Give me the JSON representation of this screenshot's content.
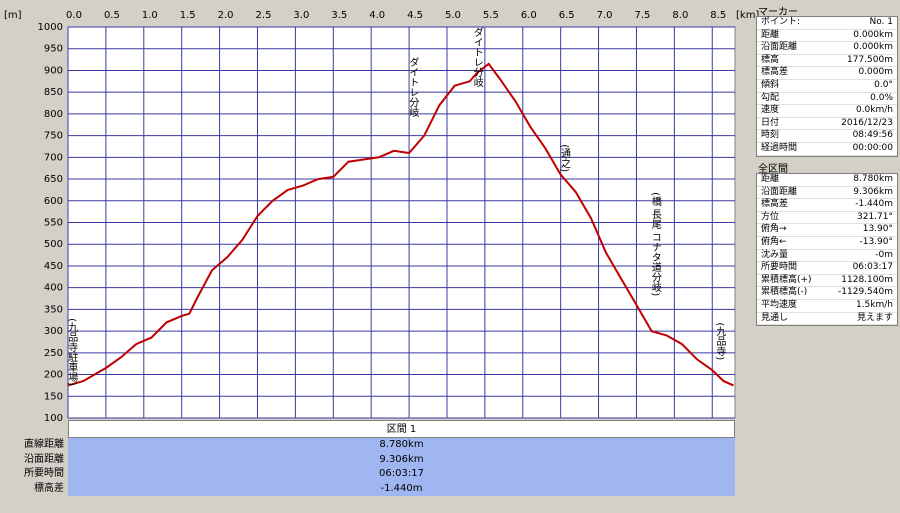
{
  "chart_data": {
    "type": "line",
    "x_unit": "[km]",
    "y_unit": "[m]",
    "x": [
      0,
      0.2,
      0.4,
      0.5,
      0.7,
      0.9,
      1.1,
      1.3,
      1.5,
      1.6,
      1.7,
      1.9,
      2.1,
      2.3,
      2.5,
      2.7,
      2.9,
      3.1,
      3.3,
      3.5,
      3.7,
      3.9,
      4.1,
      4.3,
      4.5,
      4.7,
      4.9,
      5.1,
      5.3,
      5.4,
      5.55,
      5.7,
      5.9,
      6.1,
      6.3,
      6.5,
      6.7,
      6.9,
      7.1,
      7.3,
      7.5,
      7.7,
      7.9,
      8.1,
      8.3,
      8.5,
      8.65,
      8.78
    ],
    "series": [
      {
        "color": "#c00000",
        "values": [
          175,
          185,
          205,
          215,
          240,
          270,
          285,
          320,
          335,
          340,
          375,
          440,
          470,
          510,
          565,
          600,
          625,
          635,
          650,
          655,
          690,
          695,
          700,
          715,
          710,
          750,
          820,
          865,
          875,
          895,
          915,
          880,
          830,
          770,
          720,
          660,
          620,
          560,
          480,
          420,
          360,
          300,
          290,
          270,
          235,
          210,
          185,
          175
        ]
      }
    ],
    "xlim": [
      0,
      8.8
    ],
    "ylim": [
      100,
      1000
    ],
    "xticks": [
      {
        "value": 0,
        "label": "0.0"
      },
      0.5,
      {
        "value": 1,
        "label": "1.0"
      },
      1.5,
      {
        "value": 2,
        "label": "2.0"
      },
      2.5,
      {
        "value": 3,
        "label": "3.0"
      },
      3.5,
      {
        "value": 4,
        "label": "4.0"
      },
      4.5,
      {
        "value": 5,
        "label": "5.0"
      },
      5.5,
      {
        "value": 6,
        "label": "6.0"
      },
      6.5,
      {
        "value": 7,
        "label": "7.0"
      },
      7.5,
      {
        "value": 8,
        "label": "8.0"
      },
      8.5
    ],
    "yticks": [
      100,
      150,
      200,
      250,
      300,
      350,
      400,
      450,
      500,
      550,
      600,
      650,
      700,
      750,
      800,
      850,
      900,
      950,
      1000
    ],
    "grid": true,
    "annotations": [
      {
        "label": "(九品寺駐車場)",
        "x": 0.05,
        "y": 330
      },
      {
        "label": "ダイトレ分岐",
        "x": 4.55,
        "y": 930
      },
      {
        "label": "ダイトレ分岐",
        "x": 5.4,
        "y": 1000
      },
      {
        "label": "(通之)",
        "x": 6.55,
        "y": 730
      },
      {
        "label": "(橋 長尾 コナタ道分岐)",
        "x": 7.75,
        "y": 620
      },
      {
        "label": "(九品寺)",
        "x": 8.6,
        "y": 320
      }
    ]
  },
  "marker_panel": {
    "title": "マーカー",
    "rows": [
      [
        "ポイント:",
        "No. 1"
      ],
      [
        "距離",
        "0.000km"
      ],
      [
        "沿面距離",
        "0.000km"
      ],
      [
        "標高",
        "177.500m"
      ],
      [
        "標高差",
        "0.000m"
      ],
      [
        "傾斜",
        "0.0°"
      ],
      [
        "勾配",
        "0.0%"
      ],
      [
        "速度",
        "0.0km/h"
      ],
      [
        "日付",
        "2016/12/23"
      ],
      [
        "時刻",
        "08:49:56"
      ],
      [
        "経過時間",
        "00:00:00"
      ]
    ]
  },
  "total_panel": {
    "title": "全区間",
    "rows": [
      [
        "距離",
        "8.780km"
      ],
      [
        "沿面距離",
        "9.306km"
      ],
      [
        "標高差",
        "-1.440m"
      ],
      [
        "方位",
        "321.71°"
      ],
      [
        "俯角→",
        "13.90°"
      ],
      [
        "俯角←",
        "-13.90°"
      ],
      [
        "沈み量",
        "-0m"
      ],
      [
        "所要時間",
        "06:03:17"
      ],
      [
        "累積標高(+)",
        "1128.100m"
      ],
      [
        "累積標高(-)",
        "-1129.540m"
      ],
      [
        "平均速度",
        "1.5km/h"
      ],
      [
        "見通し",
        "見えます"
      ]
    ]
  },
  "section_table": {
    "header": "区間 1",
    "rows": [
      [
        "直線距離",
        "8.780km"
      ],
      [
        "沿面距離",
        "9.306km"
      ],
      [
        "所要時間",
        "06:03:17"
      ],
      [
        "標高差",
        "-1.440m"
      ]
    ]
  }
}
